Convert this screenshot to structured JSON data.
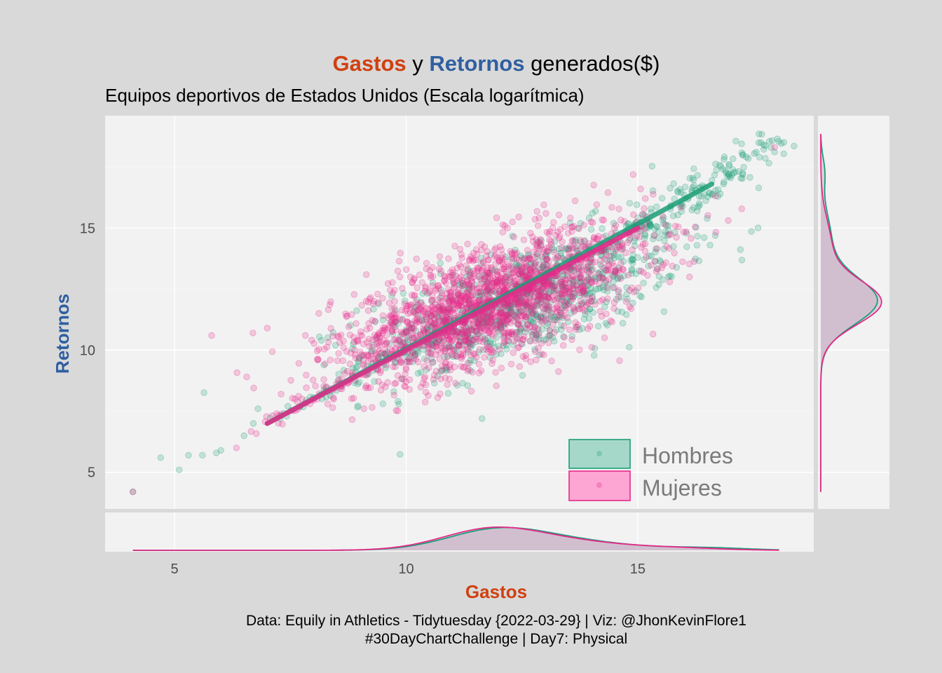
{
  "title": {
    "part1": "Gastos",
    "part2": " y ",
    "part3": "Retornos",
    "part4": " generados($)"
  },
  "subtitle": "Equipos deportivos de Estados Unidos (Escala logarítmica)",
  "caption": {
    "line1": "Data: Equily in Athletics - Tidytuesday {2022-03-29} | Viz: @JhonKevinFlore1",
    "line2": "#30DayChartChallenge | Day7: Physical"
  },
  "colors": {
    "background": "#d9d9d9",
    "panel": "#f2f2f2",
    "grid": "#ffffff",
    "gastos": "#d04010",
    "retornos": "#2f5fa0",
    "hombres": "#1b9e77",
    "mujeres": "#e7298a",
    "hombres_fill": "#a6d8c9",
    "mujeres_fill": "#fda6d3",
    "density_fill": "#c9b3c6"
  },
  "chart_data": {
    "type": "scatter",
    "title": "Gastos y Retornos generados($)",
    "subtitle": "Equipos deportivos de Estados Unidos (Escala logarítmica)",
    "xlabel": "Gastos",
    "ylabel": "Retornos",
    "xlim": [
      3.5,
      18.8
    ],
    "ylim": [
      3.5,
      19.6
    ],
    "xticks": [
      5,
      10,
      15
    ],
    "yticks": [
      5,
      10,
      15
    ],
    "grid": true,
    "legend_position": "bottom-right",
    "series": [
      {
        "name": "Hombres",
        "color": "#1b9e77",
        "trend": [
          [
            7.0,
            7.0
          ],
          [
            16.6,
            16.8
          ]
        ],
        "cloud": {
          "x_center": 12.5,
          "y_center": 12.0,
          "x_spread": 1.7,
          "y_spread": 1.3,
          "count": 900
        },
        "upper_tail": [
          [
            15.2,
            15.1
          ],
          [
            15.6,
            15.6
          ],
          [
            15.9,
            16.2
          ],
          [
            16.3,
            16.5
          ],
          [
            16.7,
            17.0
          ],
          [
            17.0,
            17.4
          ],
          [
            17.3,
            17.8
          ],
          [
            17.6,
            18.1
          ],
          [
            17.8,
            18.4
          ],
          [
            17.9,
            18.5
          ],
          [
            16.9,
            17.5
          ],
          [
            16.5,
            16.3
          ],
          [
            16.0,
            15.9
          ],
          [
            15.5,
            15.3
          ],
          [
            15.3,
            14.9
          ],
          [
            17.1,
            17.2
          ],
          [
            16.1,
            16.7
          ]
        ],
        "low_points": [
          [
            4.1,
            4.2
          ],
          [
            4.7,
            5.6
          ],
          [
            5.1,
            5.1
          ],
          [
            5.3,
            5.7
          ],
          [
            5.6,
            5.7
          ],
          [
            5.9,
            5.8
          ],
          [
            6.0,
            5.9
          ],
          [
            6.5,
            6.5
          ],
          [
            6.7,
            7.0
          ],
          [
            6.8,
            7.6
          ]
        ]
      },
      {
        "name": "Mujeres",
        "color": "#e7298a",
        "trend": [
          [
            7.0,
            7.0
          ],
          [
            15.0,
            15.0
          ]
        ],
        "cloud": {
          "x_center": 11.8,
          "y_center": 11.9,
          "x_spread": 1.7,
          "y_spread": 1.4,
          "count": 1800
        },
        "upper_tail": [],
        "low_points": [
          [
            4.1,
            4.2
          ],
          [
            5.8,
            10.6
          ],
          [
            7.0,
            10.9
          ],
          [
            7.3,
            8.2
          ],
          [
            7.6,
            8.0
          ]
        ]
      }
    ],
    "density_x": {
      "hombres": {
        "components": [
          [
            11.9,
            1.05,
            0.62
          ],
          [
            13.5,
            1.3,
            0.3
          ],
          [
            16.5,
            0.9,
            0.08
          ]
        ]
      },
      "mujeres": {
        "components": [
          [
            11.8,
            1.05,
            0.66
          ],
          [
            13.5,
            1.3,
            0.28
          ],
          [
            16.0,
            0.9,
            0.06
          ]
        ]
      }
    },
    "density_y": {
      "hombres": {
        "components": [
          [
            12.0,
            0.95,
            0.78
          ],
          [
            14.5,
            1.2,
            0.14
          ],
          [
            17.3,
            0.6,
            0.05
          ]
        ]
      },
      "mujeres": {
        "components": [
          [
            11.95,
            0.9,
            0.84
          ],
          [
            14.3,
            1.1,
            0.14
          ]
        ]
      }
    },
    "legend": [
      "Hombres",
      "Mujeres"
    ]
  }
}
